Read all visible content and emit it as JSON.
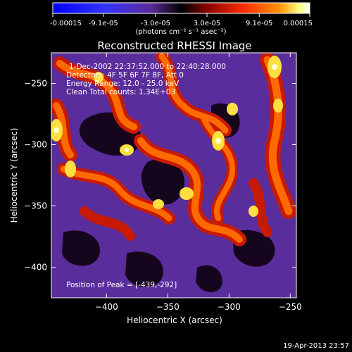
{
  "colorbar": {
    "tick_labels": [
      "-0.00015",
      "-9.1e-05",
      "-3.0e-05",
      "3.0e-05",
      "9.1e-05",
      "0.00015"
    ],
    "tick_values": [
      -0.00015,
      -9.1e-05,
      -3e-05,
      3e-05,
      9.1e-05,
      0.00015
    ],
    "range": [
      -0.00015,
      0.00015
    ],
    "units_label": "(photons cm⁻² s⁻¹ asec⁻²)"
  },
  "title": "Reconstructed RHESSI Image",
  "annotations": {
    "time_range": "1-Dec-2002 22:37:52.000 to 22:40:28.000",
    "detectors": "Detectors: 4F 5F 6F 7F 8F, Att 0",
    "energy_range": "Energy Range: 12.0 - 25.0 keV",
    "clean_counts": "Clean    Total counts: 1.34E+03",
    "peak_position": "Position of Peak = [-439,-292]"
  },
  "axes": {
    "x_label": "Heliocentric X (arcsec)",
    "y_label": "Heliocentric Y (arcsec)",
    "x_range": [
      -445,
      -245
    ],
    "y_range": [
      -425,
      -225
    ],
    "x_ticks": [
      -400,
      -350,
      -300,
      -250
    ],
    "y_ticks": [
      -250,
      -300,
      -350,
      -400
    ]
  },
  "timestamp": "19-Apr-2013 23:57",
  "colors": {
    "colormap": [
      "#0000ff",
      "#3333ff",
      "#5a2a9a",
      "#000000",
      "#8a0000",
      "#ff3000",
      "#ff9000",
      "#ffff80",
      "#ffffff"
    ]
  }
}
